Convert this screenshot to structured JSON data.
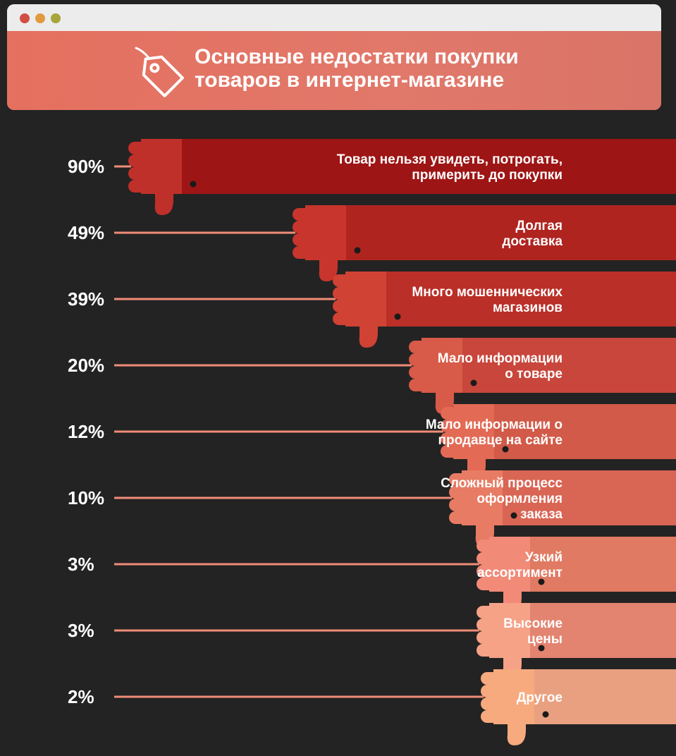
{
  "header": {
    "title_line1": "Основные недостатки покупки",
    "title_line2": "товаров в интернет-магазине"
  },
  "chart_data": {
    "type": "bar",
    "orientation": "horizontal",
    "unit": "%",
    "title": "Основные недостатки покупки товаров в интернет-магазине",
    "categories": [
      [
        "Товар нельзя увидеть, потрогать,",
        "примерить до покупки"
      ],
      [
        "Долгая",
        "доставка"
      ],
      [
        "Много мошеннических",
        "магазинов"
      ],
      [
        "Мало информации",
        "о товаре"
      ],
      [
        "Мало информации о",
        "продавце на сайте"
      ],
      [
        "Сложный процесс",
        "оформления",
        "заказа"
      ],
      [
        "Узкий",
        "ассортимент"
      ],
      [
        "Высокие",
        "цены"
      ],
      [
        "Другое"
      ]
    ],
    "values": [
      90,
      49,
      39,
      20,
      12,
      10,
      3,
      3,
      2
    ],
    "value_labels": [
      "90%",
      "49%",
      "39%",
      "20%",
      "12%",
      "10%",
      "3%",
      "3%",
      "2%"
    ],
    "xlim": [
      0,
      100
    ],
    "colors": [
      "#9e1515",
      "#b02420",
      "#ba2f27",
      "#c8463b",
      "#d25a48",
      "#d96554",
      "#e17a62",
      "#e38470",
      "#e9a080"
    ],
    "thumb_colors": [
      "#c0302a",
      "#c8352c",
      "#d04234",
      "#d85a48",
      "#e36a55",
      "#e87b63",
      "#f28a78",
      "#f6a287",
      "#f7aa7e"
    ],
    "connector_color": "#f08c78"
  }
}
